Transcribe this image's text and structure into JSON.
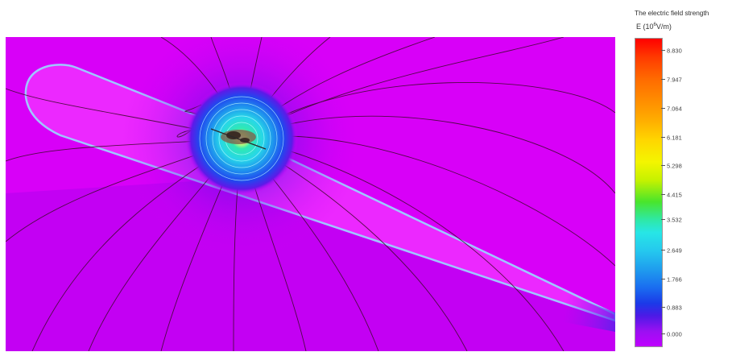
{
  "legend": {
    "title": "The electric field strength",
    "unit_prefix": "E  (10",
    "unit_exp": "6",
    "unit_suffix": "V/m)",
    "ticks": [
      "8.830",
      "7.947",
      "7.064",
      "6.181",
      "5.298",
      "4.415",
      "3.532",
      "2.649",
      "1.766",
      "0.883",
      "0.000"
    ]
  },
  "colors": {
    "background_field": "#d800f8",
    "sheath": "#ec28ff",
    "high_field": "#ff0000",
    "low_field": "#c000ff"
  }
}
